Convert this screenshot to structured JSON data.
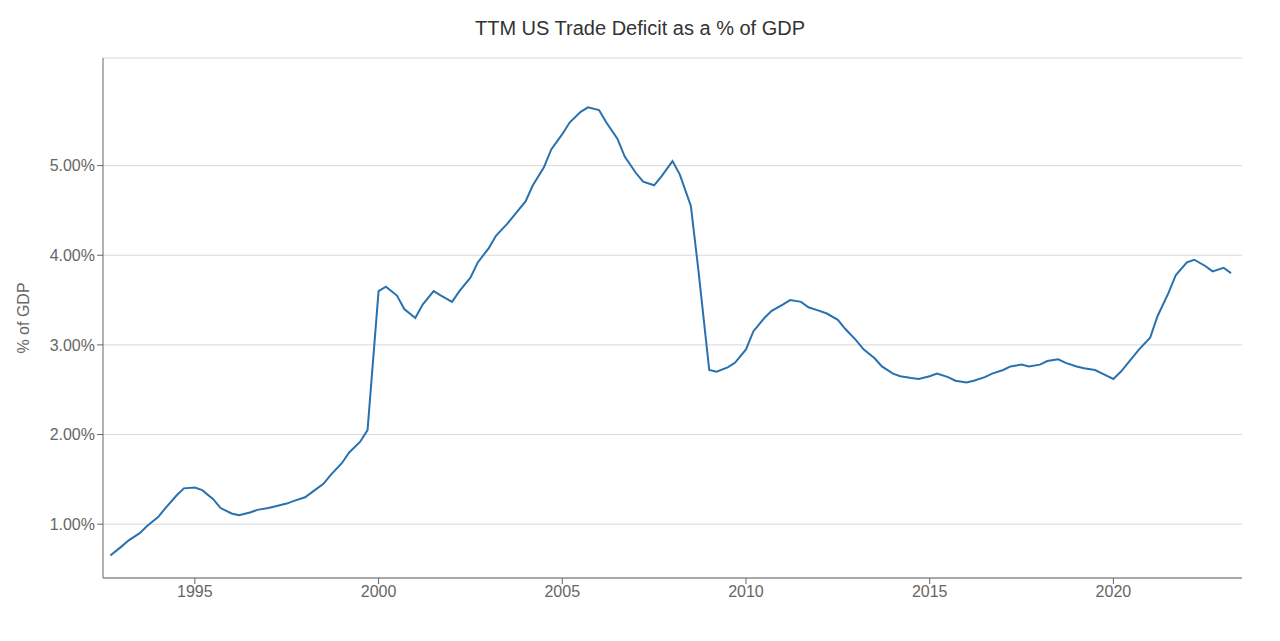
{
  "chart_data": {
    "type": "line",
    "title": "TTM US Trade Deficit as a % of GDP",
    "y_label": "% of GDP",
    "color": "#2971ae",
    "grid": "y",
    "xlim": [
      1992.5,
      2023.5
    ],
    "ylim": [
      0.004,
      0.062
    ],
    "xticks": [
      1995,
      2000,
      2005,
      2010,
      2015,
      2020
    ],
    "yticks": [
      {
        "value": 0.01,
        "label": "1.00%"
      },
      {
        "value": 0.02,
        "label": "2.00%"
      },
      {
        "value": 0.03,
        "label": "3.00%"
      },
      {
        "value": 0.04,
        "label": "4.00%"
      },
      {
        "value": 0.05,
        "label": "5.00%"
      }
    ],
    "x": [
      1992.7,
      1993.0,
      1993.2,
      1993.5,
      1993.7,
      1994.0,
      1994.2,
      1994.5,
      1994.7,
      1995.0,
      1995.2,
      1995.5,
      1995.7,
      1996.0,
      1996.2,
      1996.5,
      1996.7,
      1997.0,
      1997.2,
      1997.5,
      1997.7,
      1998.0,
      1998.2,
      1998.5,
      1998.7,
      1999.0,
      1999.2,
      1999.5,
      1999.7,
      2000.0,
      2000.2,
      2000.5,
      2000.7,
      2001.0,
      2001.2,
      2001.5,
      2001.7,
      2002.0,
      2002.2,
      2002.5,
      2002.7,
      2003.0,
      2003.2,
      2003.5,
      2003.7,
      2004.0,
      2004.2,
      2004.5,
      2004.7,
      2005.0,
      2005.2,
      2005.5,
      2005.7,
      2006.0,
      2006.2,
      2006.5,
      2006.7,
      2007.0,
      2007.2,
      2007.5,
      2007.7,
      2008.0,
      2008.2,
      2008.5,
      2008.7,
      2009.0,
      2009.2,
      2009.5,
      2009.7,
      2010.0,
      2010.2,
      2010.5,
      2010.7,
      2011.0,
      2011.2,
      2011.5,
      2011.7,
      2012.0,
      2012.2,
      2012.5,
      2012.7,
      2013.0,
      2013.2,
      2013.5,
      2013.7,
      2014.0,
      2014.2,
      2014.5,
      2014.7,
      2015.0,
      2015.2,
      2015.5,
      2015.7,
      2016.0,
      2016.2,
      2016.5,
      2016.7,
      2017.0,
      2017.2,
      2017.5,
      2017.7,
      2018.0,
      2018.2,
      2018.5,
      2018.7,
      2019.0,
      2019.2,
      2019.5,
      2019.7,
      2020.0,
      2020.2,
      2020.5,
      2020.7,
      2021.0,
      2021.2,
      2021.5,
      2021.7,
      2022.0,
      2022.2,
      2022.5,
      2022.7,
      2023.0,
      2023.2
    ],
    "values": [
      0.0065,
      0.0075,
      0.0082,
      0.009,
      0.0098,
      0.0108,
      0.0118,
      0.0132,
      0.014,
      0.0141,
      0.0138,
      0.0128,
      0.0118,
      0.0112,
      0.011,
      0.0113,
      0.0116,
      0.0118,
      0.012,
      0.0123,
      0.0126,
      0.013,
      0.0136,
      0.0145,
      0.0155,
      0.0168,
      0.018,
      0.0192,
      0.0205,
      0.036,
      0.0365,
      0.0355,
      0.034,
      0.033,
      0.0345,
      0.036,
      0.0355,
      0.0348,
      0.036,
      0.0375,
      0.0392,
      0.0408,
      0.0422,
      0.0435,
      0.0445,
      0.046,
      0.0478,
      0.0498,
      0.0518,
      0.0535,
      0.0548,
      0.056,
      0.0565,
      0.0562,
      0.0548,
      0.053,
      0.051,
      0.0492,
      0.0482,
      0.0478,
      0.0488,
      0.0505,
      0.049,
      0.0455,
      0.0385,
      0.0272,
      0.027,
      0.0275,
      0.028,
      0.0295,
      0.0315,
      0.033,
      0.0338,
      0.0345,
      0.035,
      0.0348,
      0.0342,
      0.0338,
      0.0335,
      0.0328,
      0.0318,
      0.0305,
      0.0295,
      0.0285,
      0.0276,
      0.0268,
      0.0265,
      0.0263,
      0.0262,
      0.0265,
      0.0268,
      0.0264,
      0.026,
      0.0258,
      0.026,
      0.0264,
      0.0268,
      0.0272,
      0.0276,
      0.0278,
      0.0276,
      0.0278,
      0.0282,
      0.0284,
      0.028,
      0.0276,
      0.0274,
      0.0272,
      0.0268,
      0.0262,
      0.027,
      0.0285,
      0.0295,
      0.0308,
      0.0332,
      0.0358,
      0.0378,
      0.0392,
      0.0395,
      0.0388,
      0.0382,
      0.0386,
      0.038
    ]
  }
}
